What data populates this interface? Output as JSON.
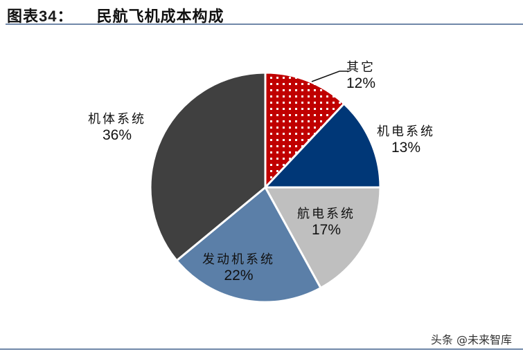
{
  "header": {
    "figure_label": "图表",
    "figure_number": "34",
    "colon": "：",
    "title": "民航飞机成本构成"
  },
  "watermark": "头条 @未来智库",
  "chart_data": {
    "type": "pie",
    "title": "民航飞机成本构成",
    "start_angle_deg": 0,
    "direction": "clockwise",
    "slices": [
      {
        "label": "其它",
        "value": 12,
        "pct_text": "12%",
        "color": "#c00000",
        "pattern": "dots"
      },
      {
        "label": "机电系统",
        "value": 13,
        "pct_text": "13%",
        "color": "#003777"
      },
      {
        "label": "航电系统",
        "value": 17,
        "pct_text": "17%",
        "color": "#bfbfbf"
      },
      {
        "label": "发动机系统",
        "value": 22,
        "pct_text": "22%",
        "color": "#5b7fa8"
      },
      {
        "label": "机体系统",
        "value": 36,
        "pct_text": "36%",
        "color": "#404040"
      }
    ],
    "legend": "none (data labels)"
  }
}
